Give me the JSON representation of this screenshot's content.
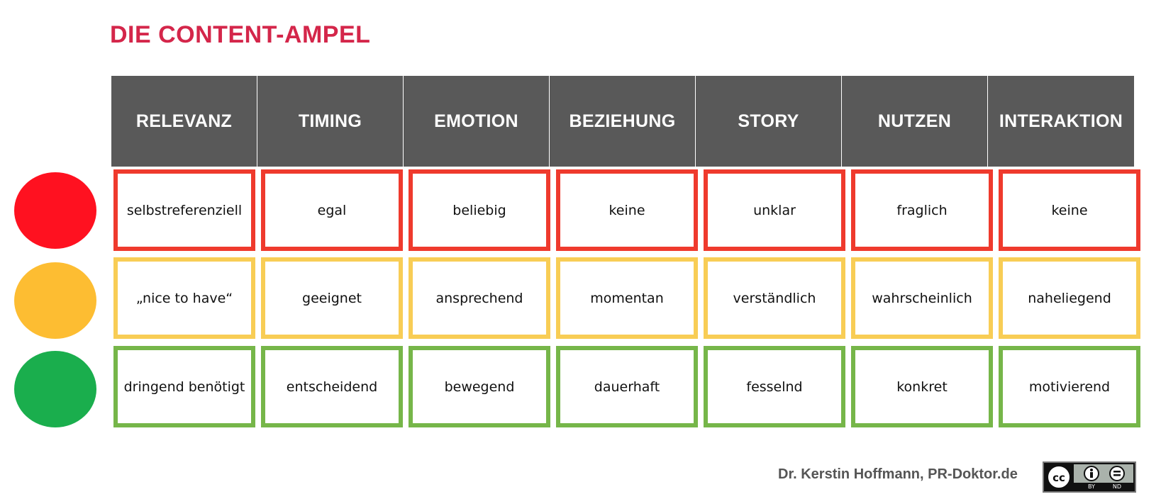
{
  "title": "DIE CONTENT-AMPEL",
  "columns": [
    "RELEVANZ",
    "TIMING",
    "EMOTION",
    "BEZIEHUNG",
    "STORY",
    "NUTZEN",
    "INTERAKTION"
  ],
  "rows": [
    {
      "color": "#ef3a2d",
      "light_color": "#ff1120",
      "cells": [
        "selbstreferenziell",
        "egal",
        "beliebig",
        "keine",
        "unklar",
        "fraglich",
        "keine"
      ]
    },
    {
      "color": "#f8cd55",
      "light_color": "#fdbd32",
      "cells": [
        "„nice to have“",
        "geeignet",
        "ansprechend",
        "momentan",
        "verständlich",
        "wahrscheinlich",
        "naheliegend"
      ]
    },
    {
      "color": "#76b649",
      "light_color": "#1aae4d",
      "cells": [
        "dringend benötigt",
        "entscheidend",
        "bewegend",
        "dauerhaft",
        "fesselnd",
        "konkret",
        "motivierend"
      ]
    }
  ],
  "credit": "Dr. Kerstin Hoffmann, PR-Doktor.de",
  "license": {
    "icon": "cc-by-nd-license-icon",
    "labels": [
      "BY",
      "ND"
    ]
  }
}
